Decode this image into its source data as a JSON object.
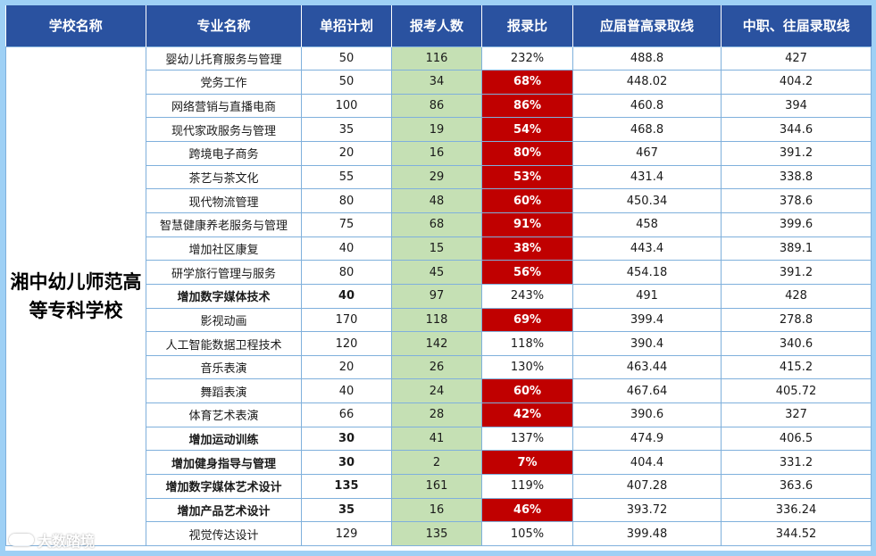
{
  "headers": [
    "学校名称",
    "专业名称",
    "单招计划",
    "报考人数",
    "报录比",
    "应届普高录取线",
    "中职、往届录取线"
  ],
  "school": "湘中幼儿师范高等专科学校",
  "watermark": "大数踏境",
  "rows": [
    {
      "major": "婴幼儿托育服务与管理",
      "plan": "50",
      "applicants": "116",
      "ratio": "232%",
      "general_line": "488.8",
      "vocational_line": "427",
      "highlight": false,
      "bold": false
    },
    {
      "major": "党务工作",
      "plan": "50",
      "applicants": "34",
      "ratio": "68%",
      "general_line": "448.02",
      "vocational_line": "404.2",
      "highlight": true,
      "bold": false
    },
    {
      "major": "网络营销与直播电商",
      "plan": "100",
      "applicants": "86",
      "ratio": "86%",
      "general_line": "460.8",
      "vocational_line": "394",
      "highlight": true,
      "bold": false
    },
    {
      "major": "现代家政服务与管理",
      "plan": "35",
      "applicants": "19",
      "ratio": "54%",
      "general_line": "468.8",
      "vocational_line": "344.6",
      "highlight": true,
      "bold": false
    },
    {
      "major": "跨境电子商务",
      "plan": "20",
      "applicants": "16",
      "ratio": "80%",
      "general_line": "467",
      "vocational_line": "391.2",
      "highlight": true,
      "bold": false
    },
    {
      "major": "茶艺与茶文化",
      "plan": "55",
      "applicants": "29",
      "ratio": "53%",
      "general_line": "431.4",
      "vocational_line": "338.8",
      "highlight": true,
      "bold": false
    },
    {
      "major": "现代物流管理",
      "plan": "80",
      "applicants": "48",
      "ratio": "60%",
      "general_line": "450.34",
      "vocational_line": "378.6",
      "highlight": true,
      "bold": false
    },
    {
      "major": "智慧健康养老服务与管理",
      "plan": "75",
      "applicants": "68",
      "ratio": "91%",
      "general_line": "458",
      "vocational_line": "399.6",
      "highlight": true,
      "bold": false
    },
    {
      "major": "增加社区康复",
      "plan": "40",
      "applicants": "15",
      "ratio": "38%",
      "general_line": "443.4",
      "vocational_line": "389.1",
      "highlight": true,
      "bold": false
    },
    {
      "major": "研学旅行管理与服务",
      "plan": "80",
      "applicants": "45",
      "ratio": "56%",
      "general_line": "454.18",
      "vocational_line": "391.2",
      "highlight": true,
      "bold": false
    },
    {
      "major": "增加数字媒体技术",
      "plan": "40",
      "applicants": "97",
      "ratio": "243%",
      "general_line": "491",
      "vocational_line": "428",
      "highlight": false,
      "bold": true
    },
    {
      "major": "影视动画",
      "plan": "170",
      "applicants": "118",
      "ratio": "69%",
      "general_line": "399.4",
      "vocational_line": "278.8",
      "highlight": true,
      "bold": false
    },
    {
      "major": "人工智能数据卫程技术",
      "plan": "120",
      "applicants": "142",
      "ratio": "118%",
      "general_line": "390.4",
      "vocational_line": "340.6",
      "highlight": false,
      "bold": false
    },
    {
      "major": "音乐表演",
      "plan": "20",
      "applicants": "26",
      "ratio": "130%",
      "general_line": "463.44",
      "vocational_line": "415.2",
      "highlight": false,
      "bold": false
    },
    {
      "major": "舞蹈表演",
      "plan": "40",
      "applicants": "24",
      "ratio": "60%",
      "general_line": "467.64",
      "vocational_line": "405.72",
      "highlight": true,
      "bold": false
    },
    {
      "major": "体育艺术表演",
      "plan": "66",
      "applicants": "28",
      "ratio": "42%",
      "general_line": "390.6",
      "vocational_line": "327",
      "highlight": true,
      "bold": false
    },
    {
      "major": "增加运动训练",
      "plan": "30",
      "applicants": "41",
      "ratio": "137%",
      "general_line": "474.9",
      "vocational_line": "406.5",
      "highlight": false,
      "bold": true
    },
    {
      "major": "增加健身指导与管理",
      "plan": "30",
      "applicants": "2",
      "ratio": "7%",
      "general_line": "404.4",
      "vocational_line": "331.2",
      "highlight": true,
      "bold": true
    },
    {
      "major": "增加数字媒体艺术设计",
      "plan": "135",
      "applicants": "161",
      "ratio": "119%",
      "general_line": "407.28",
      "vocational_line": "363.6",
      "highlight": false,
      "bold": true
    },
    {
      "major": "增加产品艺术设计",
      "plan": "35",
      "applicants": "16",
      "ratio": "46%",
      "general_line": "393.72",
      "vocational_line": "336.24",
      "highlight": true,
      "bold": true
    },
    {
      "major": "视觉传达设计",
      "plan": "129",
      "applicants": "135",
      "ratio": "105%",
      "general_line": "399.48",
      "vocational_line": "344.52",
      "highlight": false,
      "bold": false
    }
  ]
}
